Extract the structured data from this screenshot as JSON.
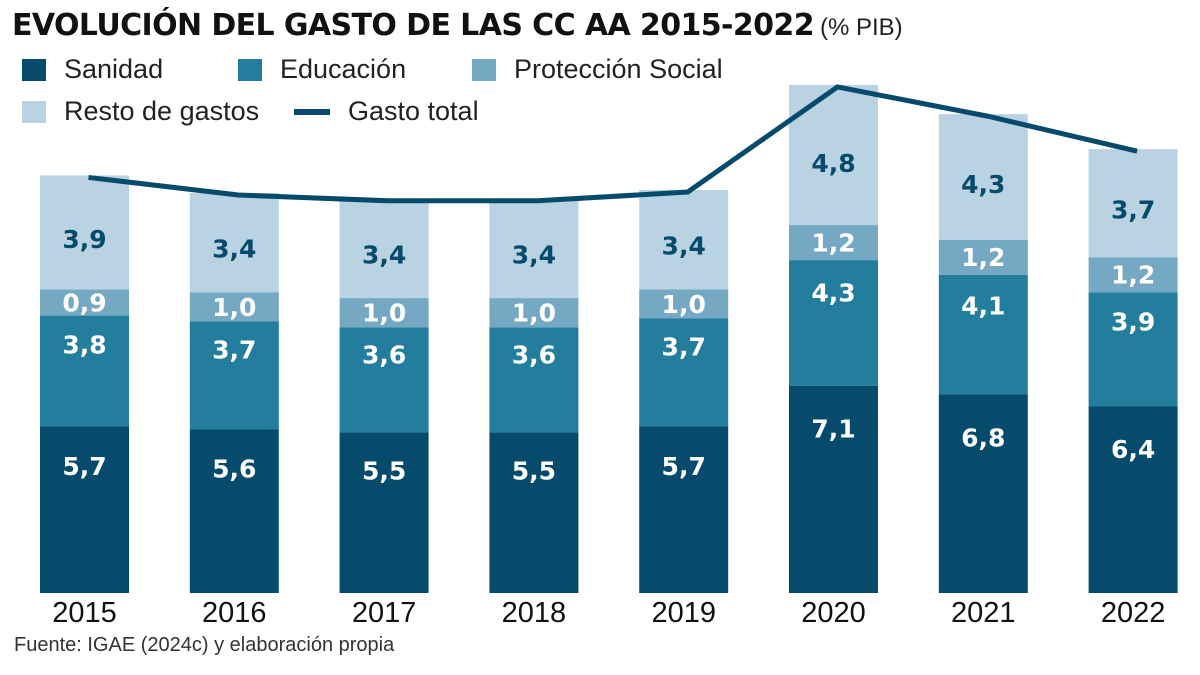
{
  "header": {
    "title": "EVOLUCIÓN DEL GASTO DE LAS CC AA 2015-2022",
    "unit": "(% PIB)"
  },
  "legend": [
    {
      "key": "sanidad",
      "label": "Sanidad",
      "type": "square",
      "color": "#064b6b"
    },
    {
      "key": "educacion",
      "label": "Educación",
      "type": "square",
      "color": "#237d9c"
    },
    {
      "key": "proteccion",
      "label": "Protección Social",
      "type": "square",
      "color": "#75a8c3"
    },
    {
      "key": "resto",
      "label": "Resto de gastos",
      "type": "square",
      "color": "#bad3e3"
    },
    {
      "key": "total",
      "label": "Gasto total",
      "type": "line",
      "color": "#064b6b"
    }
  ],
  "footer": {
    "source": "Fuente: IGAE (2024c) y elaboración propia"
  },
  "chart_data": {
    "type": "bar",
    "stacked": true,
    "title": "EVOLUCIÓN DEL GASTO DE LAS CC AA 2015-2022",
    "subtitle": "(% PIB)",
    "xlabel": "",
    "ylabel": "",
    "categories": [
      "2015",
      "2016",
      "2017",
      "2018",
      "2019",
      "2020",
      "2021",
      "2022"
    ],
    "series": [
      {
        "name": "Sanidad",
        "color": "#064b6b",
        "label_color": "#ffffff",
        "values": [
          5.7,
          5.6,
          5.5,
          5.5,
          5.7,
          7.1,
          6.8,
          6.4
        ],
        "labels": [
          "5,7",
          "5,6",
          "5,5",
          "5,5",
          "5,7",
          "7,1",
          "6,8",
          "6,4"
        ]
      },
      {
        "name": "Educación",
        "color": "#237d9c",
        "label_color": "#ffffff",
        "values": [
          3.8,
          3.7,
          3.6,
          3.6,
          3.7,
          4.3,
          4.1,
          3.9
        ],
        "labels": [
          "3,8",
          "3,7",
          "3,6",
          "3,6",
          "3,7",
          "4,3",
          "4,1",
          "3,9"
        ]
      },
      {
        "name": "Protección Social",
        "color": "#75a8c3",
        "label_color": "#ffffff",
        "values": [
          0.9,
          1.0,
          1.0,
          1.0,
          1.0,
          1.2,
          1.2,
          1.2
        ],
        "labels": [
          "0,9",
          "1,0",
          "1,0",
          "1,0",
          "1,0",
          "1,2",
          "1,2",
          "1,2"
        ]
      },
      {
        "name": "Resto de gastos",
        "color": "#bad3e3",
        "label_color": "#064b6b",
        "values": [
          3.9,
          3.4,
          3.4,
          3.4,
          3.4,
          4.8,
          4.3,
          3.7
        ],
        "labels": [
          "3,9",
          "3,4",
          "3,4",
          "3,4",
          "3,4",
          "4,8",
          "4,3",
          "3,7"
        ]
      }
    ],
    "line_series": {
      "name": "Gasto total",
      "color": "#064b6b",
      "values": [
        14.3,
        13.7,
        13.5,
        13.5,
        13.8,
        17.4,
        16.4,
        15.2
      ]
    },
    "ylim": [
      0,
      18
    ],
    "grid": false,
    "legend_position": "top-left",
    "data_labels": true
  }
}
